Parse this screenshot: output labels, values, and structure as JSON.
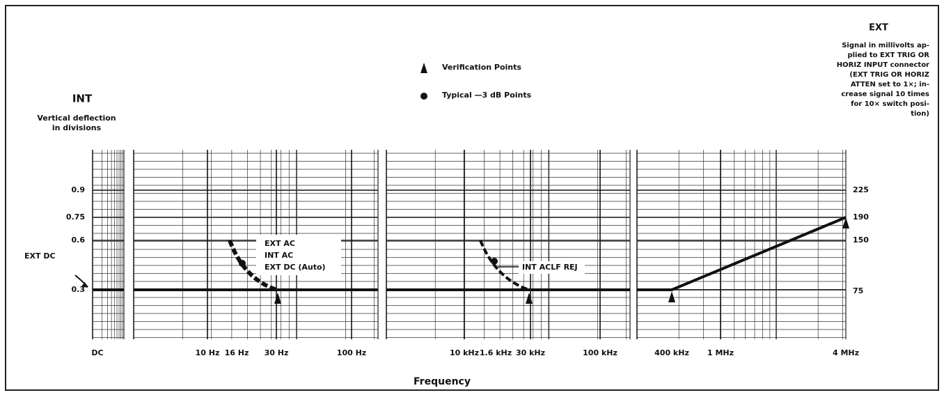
{
  "left_axis": {
    "heading": "INT",
    "caption": [
      "Vertical deflection",
      "in divisions"
    ],
    "ticks": [
      "0.9",
      "0.75",
      "0.6",
      "0.3"
    ]
  },
  "right_axis": {
    "heading": "EXT",
    "caption": [
      "Signal in millivolts ap-",
      "plied to EXT TRIG OR",
      "HORIZ INPUT connector",
      "(EXT TRIG OR HORIZ",
      "ATTEN set to 1×; in-",
      "crease signal 10 times",
      "for 10× switch posi-",
      "tion)"
    ],
    "ticks": [
      "225",
      "190",
      "150",
      "75"
    ]
  },
  "legend": [
    "Verification Points",
    "Typical —3 dB Points"
  ],
  "x_ticks": [
    "DC",
    "10 Hz",
    "16 Hz",
    "30 Hz",
    "100 Hz",
    "10 kHz",
    "1.6 kHz",
    "30 kHz",
    "100 kHz",
    "400 kHz",
    "1 MHz",
    "4 MHz"
  ],
  "x_label": "Frequency",
  "annotations": {
    "ext_dc": "EXT DC",
    "box": [
      "EXT AC",
      "INT AC",
      "EXT DC (Auto)"
    ],
    "int_aclf": "INT ACLF REJ"
  }
}
